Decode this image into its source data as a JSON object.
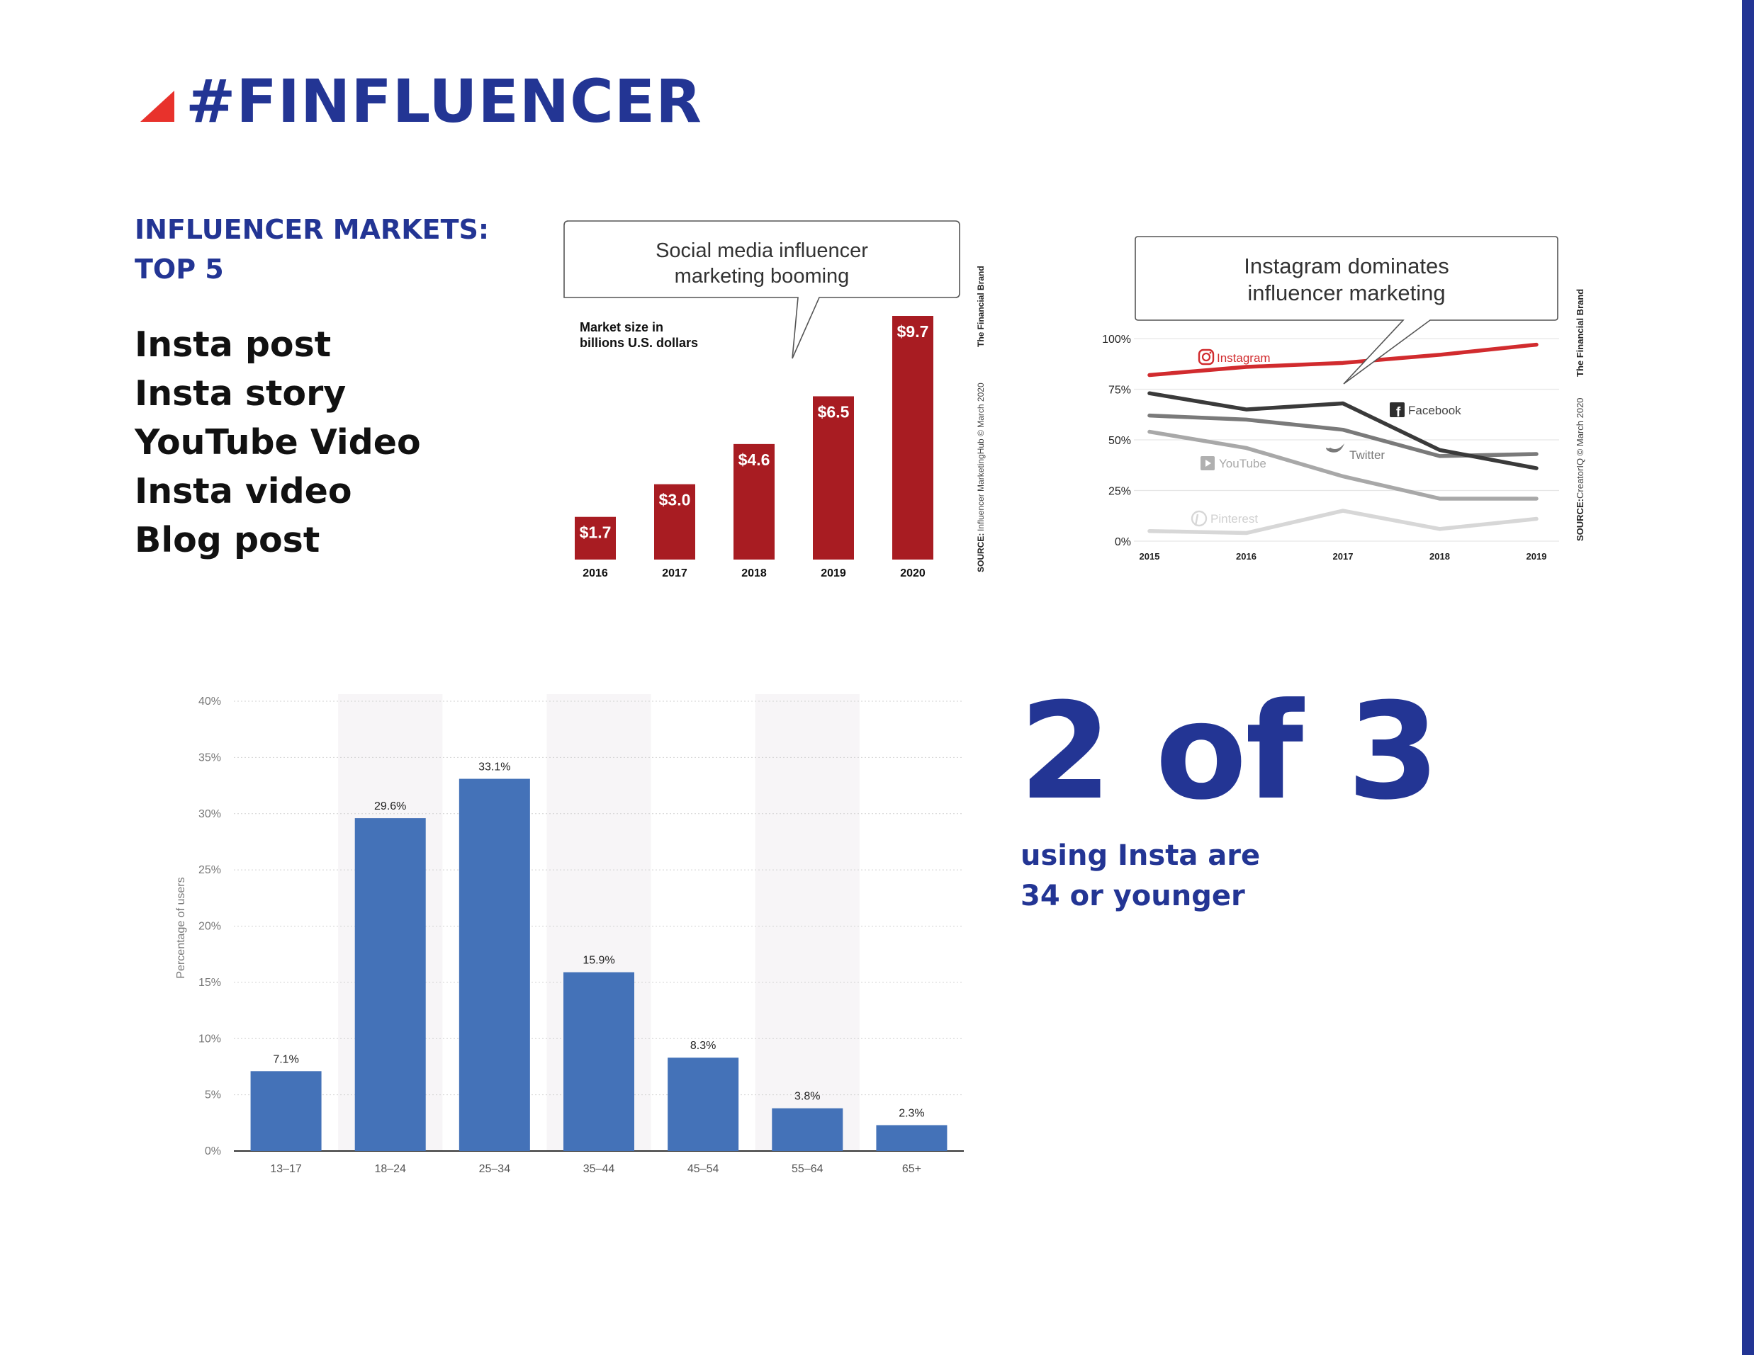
{
  "page": {
    "title": "#FINFLUENCER",
    "subheading_line1": "INFLUENCER MARKETS:",
    "subheading_line2": "TOP 5",
    "top5": [
      "Insta post",
      "Insta story",
      "YouTube Video",
      "Insta video",
      "Blog post"
    ],
    "big_number": "2 of 3",
    "caption_line1": "using Insta are",
    "caption_line2": "34 or younger"
  },
  "colors": {
    "brand_blue": "#233594",
    "accent_red": "#e8322c",
    "market_bar": "#a81c22",
    "age_bar": "#4472b8",
    "instagram": "#d12b2e",
    "facebook": "#3a3a3a",
    "twitter": "#7a7a7a",
    "youtube": "#a8a8a8",
    "pinterest": "#d7d7d7"
  },
  "chart_data": [
    {
      "id": "market-size",
      "type": "bar",
      "callout_line1": "Social media influencer",
      "callout_line2": "marketing booming",
      "ylabel_line1": "Market size in",
      "ylabel_line2": "billions U.S. dollars",
      "categories": [
        "2016",
        "2017",
        "2018",
        "2019",
        "2020"
      ],
      "values": [
        1.7,
        3.0,
        4.6,
        6.5,
        9.7
      ],
      "value_labels": [
        "$1.7",
        "$3.0",
        "$4.6",
        "$6.5",
        "$9.7"
      ],
      "source_label": "SOURCE:",
      "source_text": "Influencer MarketingHub © March 2020",
      "brand_text": "The Financial Brand"
    },
    {
      "id": "platform-share",
      "type": "line",
      "callout_line1": "Instagram dominates",
      "callout_line2": "influencer marketing",
      "x": [
        "2015",
        "2016",
        "2017",
        "2018",
        "2019"
      ],
      "yticks": [
        "100%",
        "75%",
        "50%",
        "25%",
        "0%"
      ],
      "ylim": [
        0,
        100
      ],
      "series": [
        {
          "name": "Instagram",
          "values": [
            82,
            86,
            88,
            92,
            97
          ]
        },
        {
          "name": "Facebook",
          "values": [
            73,
            65,
            68,
            45,
            36
          ]
        },
        {
          "name": "Twitter",
          "values": [
            62,
            60,
            55,
            42,
            43
          ]
        },
        {
          "name": "YouTube",
          "values": [
            54,
            46,
            32,
            21,
            21
          ]
        },
        {
          "name": "Pinterest",
          "values": [
            5,
            4,
            15,
            6,
            11
          ]
        }
      ],
      "source_label": "SOURCE:",
      "source_text": "CreatorIQ © March 2020",
      "brand_text": "The Financial Brand"
    },
    {
      "id": "instagram-age",
      "type": "bar",
      "ylabel": "Percentage of users",
      "categories": [
        "13–17",
        "18–24",
        "25–34",
        "35–44",
        "45–54",
        "55–64",
        "65+"
      ],
      "values": [
        7.1,
        29.6,
        33.1,
        15.9,
        8.3,
        3.8,
        2.3
      ],
      "value_labels": [
        "7.1%",
        "29.6%",
        "33.1%",
        "15.9%",
        "8.3%",
        "3.8%",
        "2.3%"
      ],
      "yticks": [
        "0%",
        "5%",
        "10%",
        "15%",
        "20%",
        "25%",
        "30%",
        "35%",
        "40%"
      ],
      "ylim": [
        0,
        40
      ]
    }
  ]
}
